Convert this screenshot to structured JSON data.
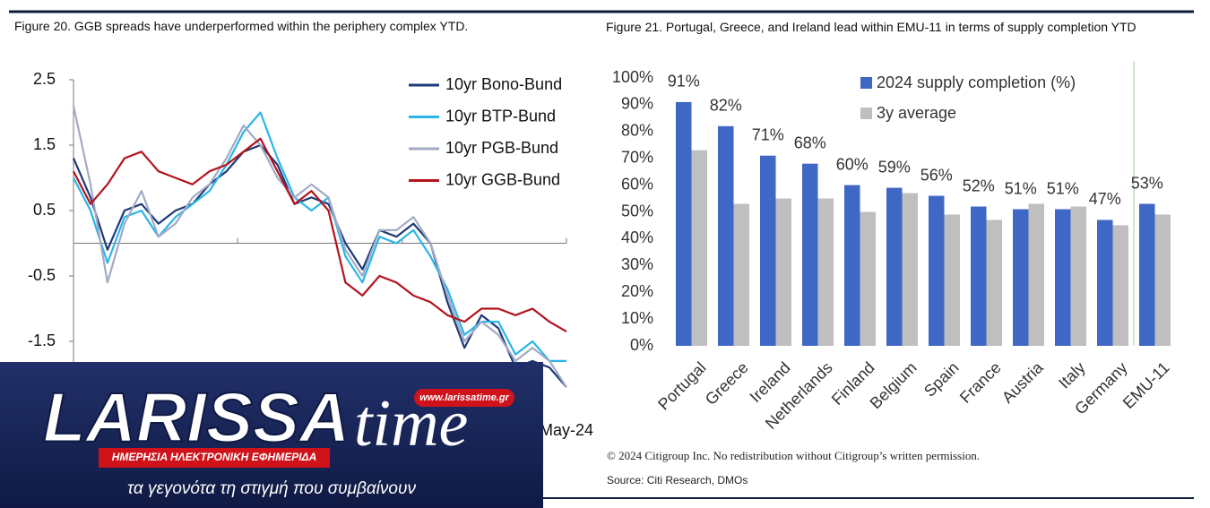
{
  "chart_data": [
    {
      "type": "line",
      "title": "Figure 20. GGB spreads have underperformed within the periphery complex YTD.",
      "categories": [
        null,
        null,
        null,
        null,
        null,
        null,
        null,
        null,
        null,
        null,
        null,
        null,
        null,
        null,
        null,
        null,
        null,
        null,
        null,
        null,
        null,
        null,
        null,
        null,
        null,
        null,
        null,
        null,
        null,
        "May-24"
      ],
      "series": [
        {
          "name": "10yr Bono-Bund",
          "color": "#1f3a78",
          "values": [
            1.3,
            0.7,
            -0.1,
            0.5,
            0.6,
            0.3,
            0.5,
            0.6,
            0.9,
            1.1,
            1.4,
            1.5,
            1.2,
            0.6,
            0.7,
            0.6,
            0.0,
            -0.4,
            0.2,
            0.1,
            0.3,
            0.0,
            -0.9,
            -1.6,
            -1.1,
            -1.3,
            -1.9,
            -1.8,
            -1.9,
            -2.2
          ]
        },
        {
          "name": "10yr BTP-Bund",
          "color": "#2bb5e8",
          "values": [
            1.0,
            0.5,
            -0.3,
            0.4,
            0.5,
            0.1,
            0.4,
            0.6,
            0.8,
            1.2,
            1.7,
            2.0,
            1.3,
            0.7,
            0.5,
            0.7,
            -0.2,
            -0.6,
            0.1,
            0.0,
            0.2,
            -0.2,
            -0.7,
            -1.4,
            -1.2,
            -1.2,
            -1.7,
            -1.5,
            -1.8,
            -1.8
          ]
        },
        {
          "name": "10yr PGB-Bund",
          "color": "#a2abc6",
          "values": [
            2.1,
            0.9,
            -0.6,
            0.3,
            0.8,
            0.1,
            0.3,
            0.7,
            0.9,
            1.3,
            1.8,
            1.5,
            1.0,
            0.7,
            0.9,
            0.7,
            -0.1,
            -0.5,
            0.2,
            0.2,
            0.4,
            0.0,
            -0.8,
            -1.5,
            -1.2,
            -1.4,
            -1.8,
            -1.6,
            -1.8,
            -2.2
          ]
        },
        {
          "name": "10yr GGB-Bund",
          "color": "#b3141d",
          "values": [
            1.1,
            0.6,
            0.9,
            1.3,
            1.4,
            1.1,
            1.0,
            0.9,
            1.1,
            1.2,
            1.4,
            1.6,
            1.1,
            0.6,
            0.8,
            0.5,
            -0.6,
            -0.8,
            -0.5,
            -0.6,
            -0.8,
            -0.9,
            -1.1,
            -1.2,
            -1.0,
            -1.0,
            -1.1,
            -1.0,
            -1.2,
            -1.35
          ]
        }
      ],
      "ylim": [
        -2.5,
        2.5
      ],
      "yticks": [
        2.5,
        1.5,
        0.5,
        -0.5,
        -1.5
      ],
      "legend": "top-right"
    },
    {
      "type": "bar",
      "title": "Figure 21. Portugal, Greece, and Ireland lead within EMU-11 in terms of supply completion YTD",
      "categories": [
        "Portugal",
        "Greece",
        "Ireland",
        "Netherlands",
        "Finland",
        "Belgium",
        "Spain",
        "France",
        "Austria",
        "Italy",
        "Germany",
        "EMU-11"
      ],
      "series": [
        {
          "name": "2024 supply completion (%)",
          "color": "#3f67c6",
          "values": [
            91,
            82,
            71,
            68,
            60,
            59,
            56,
            52,
            51,
            51,
            47,
            53
          ],
          "value_labels": [
            "91%",
            "82%",
            "71%",
            "68%",
            "60%",
            "59%",
            "56%",
            "52%",
            "51%",
            "51%",
            "47%",
            "53%"
          ]
        },
        {
          "name": "3y average",
          "color": "#bfbfbf",
          "values": [
            73,
            53,
            55,
            55,
            50,
            57,
            49,
            47,
            53,
            52,
            45,
            49
          ]
        }
      ],
      "ylim": [
        0,
        100
      ],
      "yticks": [
        {
          "value": 0,
          "label": "0%"
        },
        {
          "value": 10,
          "label": "10%"
        },
        {
          "value": 20,
          "label": "20%"
        },
        {
          "value": 30,
          "label": "30%"
        },
        {
          "value": 40,
          "label": "40%"
        },
        {
          "value": 50,
          "label": "50%"
        },
        {
          "value": 60,
          "label": "60%"
        },
        {
          "value": 70,
          "label": "70%"
        },
        {
          "value": 80,
          "label": "80%"
        },
        {
          "value": 90,
          "label": "90%"
        },
        {
          "value": 100,
          "label": "100%"
        }
      ],
      "legend": "top-left"
    }
  ],
  "footer": {
    "copyright": "© 2024 Citigroup Inc. No redistribution without Citigroup’s written permission.",
    "source": "Source: Citi Research, DMOs"
  },
  "logo": {
    "name_main": "LARISSA",
    "name_script": "time",
    "url": "www.larissatime.gr",
    "tagline": "ΗΜΕΡΗΣΙΑ ΗΛΕΚΤΡΟΝΙΚΗ ΕΦΗΜΕΡΙΔΑ",
    "slogan": "τα γεγονότα τη στιγμή που συμβαίνουν"
  }
}
